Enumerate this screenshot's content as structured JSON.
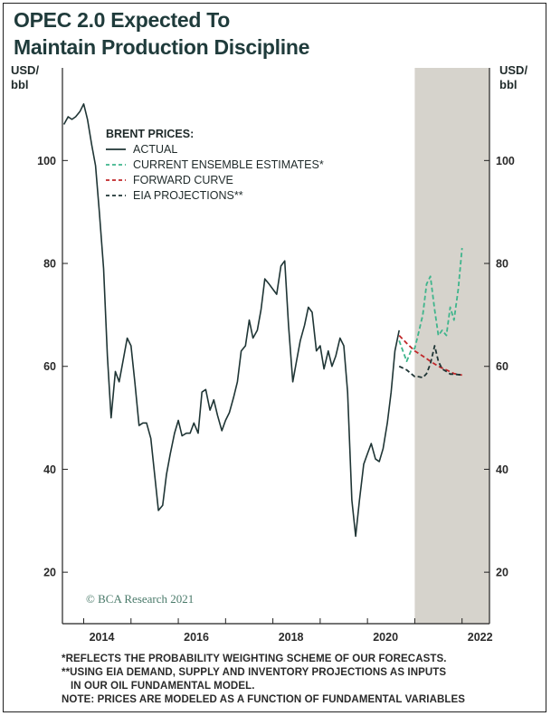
{
  "title_line1": "OPEC 2.0 Expected To",
  "title_line2": "Maintain Production Discipline",
  "left_unit_line1": "USD/",
  "left_unit_line2": "bbl",
  "right_unit_line1": "USD/",
  "right_unit_line2": "bbl",
  "credit": "© BCA Research 2021",
  "notes": [
    "*REFLECTS THE PROBABILITY WEIGHTING SCHEME OF OUR FORECASTS.",
    "**USING EIA DEMAND, SUPPLY AND INVENTORY PROJECTIONS AS INPUTS",
    "IN OUR OIL FUNDAMENTAL MODEL.",
    "NOTE: PRICES ARE MODELED AS A FUNCTION OF FUNDAMENTAL VARIABLES"
  ],
  "colors": {
    "actual": "#1f3535",
    "ensemble": "#3fb58c",
    "forward": "#c0282a",
    "eia": "#1f3535",
    "shade": "#d6d3cc"
  },
  "chart_data": {
    "type": "line",
    "title": "OPEC 2.0 Expected To Maintain Production Discipline",
    "ylabel": "USD/bbl",
    "xlim": [
      2013.55,
      2022.58
    ],
    "ylim": [
      10,
      118
    ],
    "xticks": [
      2014,
      2016,
      2018,
      2020,
      2022
    ],
    "yticks": [
      20,
      40,
      60,
      80,
      100
    ],
    "forecast_shade_start": 2021.0,
    "legend_title": "BRENT PRICES:",
    "legend_position": "top-left",
    "grid": false,
    "series": [
      {
        "name": "ACTUAL",
        "style": "solid",
        "points": [
          [
            2013.58,
            107
          ],
          [
            2013.67,
            108.5
          ],
          [
            2013.75,
            108
          ],
          [
            2013.83,
            108.5
          ],
          [
            2013.92,
            109.5
          ],
          [
            2014.0,
            111
          ],
          [
            2014.08,
            108
          ],
          [
            2014.17,
            103
          ],
          [
            2014.25,
            99
          ],
          [
            2014.33,
            90
          ],
          [
            2014.42,
            79
          ],
          [
            2014.5,
            62
          ],
          [
            2014.58,
            50
          ],
          [
            2014.67,
            59
          ],
          [
            2014.75,
            57
          ],
          [
            2014.83,
            61
          ],
          [
            2014.92,
            65.5
          ],
          [
            2015.0,
            64
          ],
          [
            2015.08,
            57
          ],
          [
            2015.17,
            48.5
          ],
          [
            2015.25,
            49
          ],
          [
            2015.33,
            49
          ],
          [
            2015.42,
            46
          ],
          [
            2015.5,
            39
          ],
          [
            2015.58,
            32
          ],
          [
            2015.67,
            33
          ],
          [
            2015.75,
            39
          ],
          [
            2015.83,
            43
          ],
          [
            2015.92,
            47
          ],
          [
            2016.0,
            49.5
          ],
          [
            2016.08,
            46.5
          ],
          [
            2016.17,
            47
          ],
          [
            2016.25,
            47
          ],
          [
            2016.33,
            49
          ],
          [
            2016.42,
            47
          ],
          [
            2016.5,
            55
          ],
          [
            2016.58,
            55.5
          ],
          [
            2016.67,
            51.5
          ],
          [
            2016.75,
            53.5
          ],
          [
            2016.83,
            50.5
          ],
          [
            2016.92,
            47.5
          ],
          [
            2017.0,
            49.5
          ],
          [
            2017.08,
            51
          ],
          [
            2017.17,
            54
          ],
          [
            2017.25,
            57
          ],
          [
            2017.33,
            63
          ],
          [
            2017.42,
            64
          ],
          [
            2017.5,
            69
          ],
          [
            2017.58,
            65.5
          ],
          [
            2017.67,
            67
          ],
          [
            2017.75,
            71
          ],
          [
            2017.83,
            77
          ],
          [
            2017.92,
            76
          ],
          [
            2018.0,
            75
          ],
          [
            2018.08,
            74
          ],
          [
            2018.17,
            79.5
          ],
          [
            2018.25,
            80.5
          ],
          [
            2018.33,
            68
          ],
          [
            2018.42,
            57
          ],
          [
            2018.5,
            61
          ],
          [
            2018.58,
            65
          ],
          [
            2018.67,
            68
          ],
          [
            2018.75,
            71.5
          ],
          [
            2018.83,
            70.5
          ],
          [
            2018.92,
            63
          ],
          [
            2019.0,
            64
          ],
          [
            2019.08,
            59.5
          ],
          [
            2019.17,
            63
          ],
          [
            2019.25,
            60
          ],
          [
            2019.33,
            62
          ],
          [
            2019.42,
            65.5
          ],
          [
            2019.5,
            64
          ],
          [
            2019.58,
            55
          ],
          [
            2019.67,
            34
          ],
          [
            2019.75,
            27
          ],
          [
            2019.83,
            34
          ],
          [
            2019.92,
            41
          ],
          [
            2020.0,
            43
          ],
          [
            2020.08,
            45
          ],
          [
            2020.17,
            42
          ],
          [
            2020.25,
            41.5
          ],
          [
            2020.33,
            44
          ],
          [
            2020.42,
            49
          ],
          [
            2020.5,
            55
          ],
          [
            2020.58,
            63
          ],
          [
            2020.67,
            67
          ]
        ]
      },
      {
        "name": "CURRENT ENSEMBLE ESTIMATES*",
        "style": "dashed",
        "points": [
          [
            2020.67,
            65
          ],
          [
            2020.75,
            63
          ],
          [
            2020.83,
            61
          ],
          [
            2020.92,
            63
          ],
          [
            2021.0,
            63.5
          ],
          [
            2021.08,
            66.5
          ],
          [
            2021.17,
            70
          ],
          [
            2021.25,
            76
          ],
          [
            2021.33,
            77.5
          ],
          [
            2021.42,
            71
          ],
          [
            2021.5,
            66
          ],
          [
            2021.58,
            67
          ],
          [
            2021.67,
            66
          ],
          [
            2021.75,
            71.5
          ],
          [
            2021.83,
            69
          ],
          [
            2021.92,
            75
          ],
          [
            2022.0,
            83
          ]
        ]
      },
      {
        "name": "FORWARD CURVE",
        "style": "dashed",
        "points": [
          [
            2020.67,
            66
          ],
          [
            2020.83,
            64.5
          ],
          [
            2021.0,
            63
          ],
          [
            2021.17,
            62
          ],
          [
            2021.33,
            61
          ],
          [
            2021.5,
            60
          ],
          [
            2021.67,
            59.3
          ],
          [
            2021.83,
            58.6
          ],
          [
            2022.0,
            58.3
          ]
        ]
      },
      {
        "name": "EIA PROJECTIONS**",
        "style": "dashed",
        "points": [
          [
            2020.67,
            60
          ],
          [
            2020.83,
            59.3
          ],
          [
            2021.0,
            58
          ],
          [
            2021.08,
            58
          ],
          [
            2021.17,
            57.8
          ],
          [
            2021.25,
            58.6
          ],
          [
            2021.33,
            60.5
          ],
          [
            2021.42,
            64
          ],
          [
            2021.5,
            61
          ],
          [
            2021.58,
            59.5
          ],
          [
            2021.67,
            59
          ],
          [
            2021.75,
            58.5
          ],
          [
            2021.83,
            58.5
          ],
          [
            2022.0,
            58.3
          ]
        ]
      }
    ]
  }
}
